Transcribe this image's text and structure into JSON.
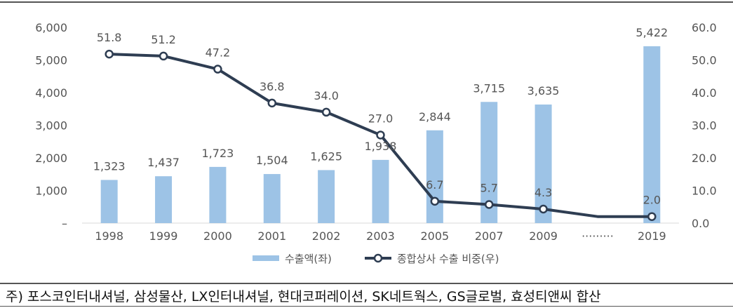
{
  "chart_data": {
    "type": "bar+line",
    "categories": [
      "1998",
      "1999",
      "2000",
      "2001",
      "2002",
      "2003",
      "2005",
      "2007",
      "2009",
      "·········",
      "2019"
    ],
    "series": [
      {
        "name": "수출액(좌)",
        "type": "bar",
        "axis": "left",
        "color": "#9dc3e6",
        "values": [
          1323,
          1437,
          1723,
          1504,
          1625,
          1938,
          2844,
          3715,
          3635,
          null,
          5422
        ],
        "labels": [
          "1,323",
          "1,437",
          "1,723",
          "1,504",
          "1,625",
          "1,938",
          "2,844",
          "3,715",
          "3,635",
          "",
          "5,422"
        ]
      },
      {
        "name": "종합상사 수출 비중(우)",
        "type": "line",
        "axis": "right",
        "color": "#2e3d52",
        "values": [
          51.8,
          51.2,
          47.2,
          36.8,
          34.0,
          27.0,
          6.7,
          5.7,
          4.3,
          2.0,
          2.0
        ],
        "markers": [
          true,
          true,
          true,
          true,
          true,
          true,
          true,
          true,
          true,
          false,
          true
        ],
        "labels": [
          "51.8",
          "51.2",
          "47.2",
          "36.8",
          "34.0",
          "27.0",
          "6.7",
          "5.7",
          "4.3",
          "",
          "2.0"
        ]
      }
    ],
    "y_left": {
      "ylim": [
        0,
        6000
      ],
      "ticks": [
        "–",
        "1,000",
        "2,000",
        "3,000",
        "4,000",
        "5,000",
        "6,000"
      ]
    },
    "y_right": {
      "ylim": [
        0,
        60
      ],
      "ticks": [
        "0.0",
        "10.0",
        "20.0",
        "30.0",
        "40.0",
        "50.0",
        "60.0"
      ]
    },
    "legend": {
      "position": "bottom"
    },
    "grid": false
  },
  "note": "주) 포스코인터내셔널, 삼성물산, LX인터내셔널, 현대코퍼레이션, SK네트웍스, GS글로벌, 효성티앤씨 합산"
}
